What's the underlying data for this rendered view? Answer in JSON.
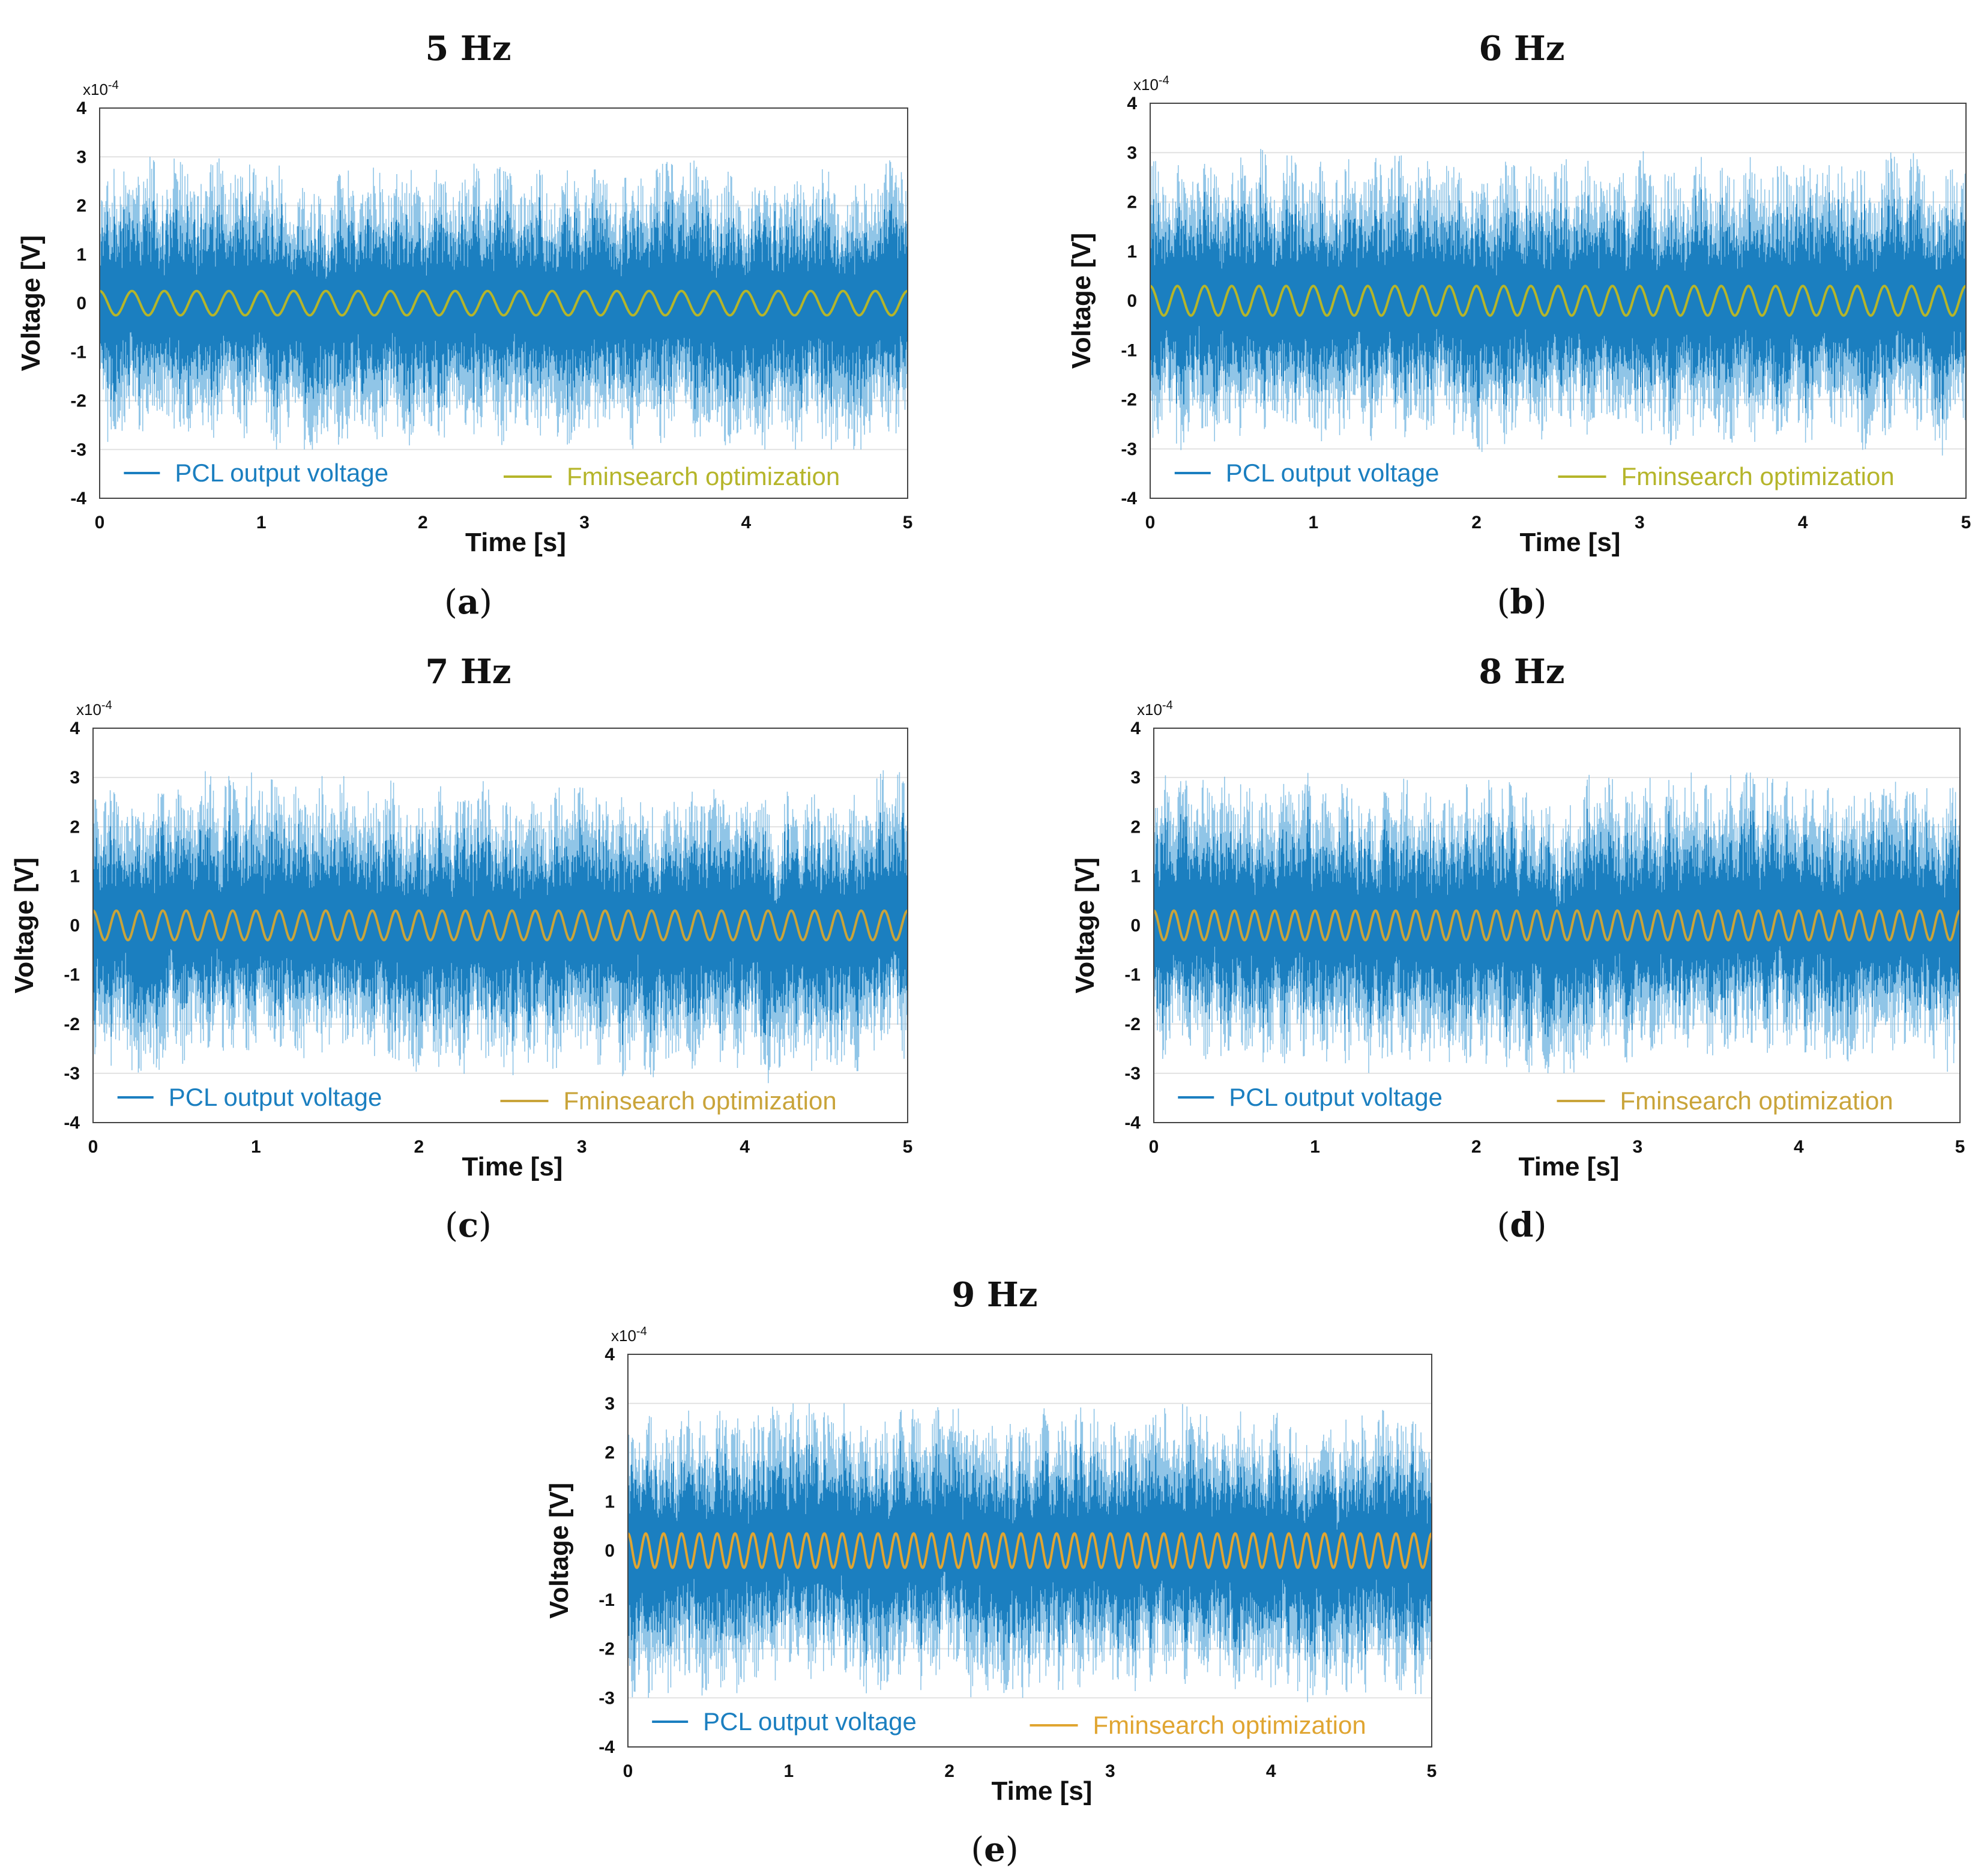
{
  "chart_data": [
    {
      "type": "line",
      "title": "5 Hz",
      "caption_letter": "a",
      "xlabel": "Time [s]",
      "ylabel": "Voltage [V]",
      "y_exponent": "x10",
      "y_exponent_power": "-4",
      "xlim": [
        0,
        5
      ],
      "ylim": [
        -4,
        4
      ],
      "xticks": [
        "0",
        "1",
        "2",
        "3",
        "4",
        "5"
      ],
      "yticks": [
        "4",
        "3",
        "2",
        "1",
        "0",
        "-1",
        "-2",
        "-3",
        "-4"
      ],
      "series": [
        {
          "name": "PCL output voltage",
          "color": "#1b7fc0",
          "kind": "noise",
          "envelope_max": 3.0,
          "envelope_min": -3.0
        },
        {
          "name": "Fminsearch optimization",
          "color": "#b5b52a",
          "kind": "sine",
          "frequency_hz": 5,
          "amplitude": 0.25
        }
      ]
    },
    {
      "type": "line",
      "title": "6 Hz",
      "caption_letter": "b",
      "xlabel": "Time [s]",
      "ylabel": "Voltage [V]",
      "y_exponent": "x10",
      "y_exponent_power": "-4",
      "xlim": [
        0,
        5
      ],
      "ylim": [
        -4,
        4
      ],
      "xticks": [
        "0",
        "1",
        "2",
        "3",
        "4",
        "5"
      ],
      "yticks": [
        "4",
        "3",
        "2",
        "1",
        "0",
        "-1",
        "-2",
        "-3",
        "-4"
      ],
      "series": [
        {
          "name": "PCL output voltage",
          "color": "#1b7fc0",
          "kind": "noise",
          "envelope_max": 3.4,
          "envelope_min": -3.2
        },
        {
          "name": "Fminsearch optimization",
          "color": "#b5b52a",
          "kind": "sine",
          "frequency_hz": 6,
          "amplitude": 0.3
        }
      ]
    },
    {
      "type": "line",
      "title": "7 Hz",
      "caption_letter": "c",
      "xlabel": "Time [s]",
      "ylabel": "Voltage [V]",
      "y_exponent": "x10",
      "y_exponent_power": "-4",
      "xlim": [
        0,
        5
      ],
      "ylim": [
        -4,
        4
      ],
      "xticks": [
        "0",
        "1",
        "2",
        "3",
        "4",
        "5"
      ],
      "yticks": [
        "4",
        "3",
        "2",
        "1",
        "0",
        "-1",
        "-2",
        "-3",
        "-4"
      ],
      "series": [
        {
          "name": "PCL output voltage",
          "color": "#1b7fc0",
          "kind": "noise",
          "envelope_max": 3.3,
          "envelope_min": -3.2
        },
        {
          "name": "Fminsearch optimization",
          "color": "#c9a43a",
          "kind": "sine",
          "frequency_hz": 7,
          "amplitude": 0.3
        }
      ]
    },
    {
      "type": "line",
      "title": "8 Hz",
      "caption_letter": "d",
      "xlabel": "Time [s]",
      "ylabel": "Voltage [V]",
      "y_exponent": "x10",
      "y_exponent_power": "-4",
      "xlim": [
        0,
        5
      ],
      "ylim": [
        -4,
        4
      ],
      "xticks": [
        "0",
        "1",
        "2",
        "3",
        "4",
        "5"
      ],
      "yticks": [
        "4",
        "3",
        "2",
        "1",
        "0",
        "-1",
        "-2",
        "-3",
        "-4"
      ],
      "series": [
        {
          "name": "PCL output voltage",
          "color": "#1b7fc0",
          "kind": "noise",
          "envelope_max": 3.1,
          "envelope_min": -3.0
        },
        {
          "name": "Fminsearch optimization",
          "color": "#c9a43a",
          "kind": "sine",
          "frequency_hz": 8,
          "amplitude": 0.3
        }
      ]
    },
    {
      "type": "line",
      "title": "9 Hz",
      "caption_letter": "e",
      "xlabel": "Time [s]",
      "ylabel": "Voltage [V]",
      "y_exponent": "x10",
      "y_exponent_power": "-4",
      "xlim": [
        0,
        5
      ],
      "ylim": [
        -4,
        4
      ],
      "xticks": [
        "0",
        "1",
        "2",
        "3",
        "4",
        "5"
      ],
      "yticks": [
        "4",
        "3",
        "2",
        "1",
        "0",
        "-1",
        "-2",
        "-3",
        "-4"
      ],
      "series": [
        {
          "name": "PCL output voltage",
          "color": "#1b7fc0",
          "kind": "noise",
          "envelope_max": 3.0,
          "envelope_min": -3.1
        },
        {
          "name": "Fminsearch optimization",
          "color": "#e0a531",
          "kind": "sine",
          "frequency_hz": 9,
          "amplitude": 0.35
        }
      ]
    }
  ]
}
